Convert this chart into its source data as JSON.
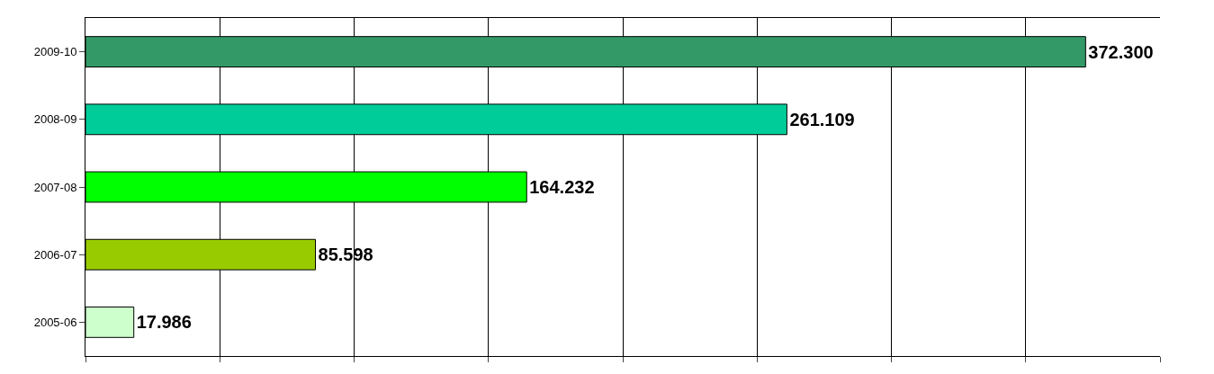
{
  "chart_data": {
    "type": "bar",
    "orientation": "horizontal",
    "categories": [
      "2009-10",
      "2008-09",
      "2007-08",
      "2006-07",
      "2005-06"
    ],
    "values": [
      372.3,
      261.109,
      164.232,
      85.598,
      17.986
    ],
    "value_labels": [
      "372.300",
      "261.109",
      "164.232",
      "85.598",
      "17.986"
    ],
    "colors": [
      "#339966",
      "#00cc99",
      "#00ff00",
      "#99cc00",
      "#ccffcc"
    ],
    "xlim": [
      0,
      400
    ],
    "xticks": [
      {
        "value": 0,
        "label": null
      },
      {
        "value": 50,
        "label": null
      },
      {
        "value": 100,
        "label": null
      },
      {
        "value": 150,
        "label": null
      },
      {
        "value": 200,
        "label": null
      },
      {
        "value": 250,
        "label": null
      },
      {
        "value": 300,
        "label": null
      },
      {
        "value": 350,
        "label": null
      },
      {
        "value": 400,
        "label": null
      }
    ],
    "tick_labels": "y",
    "grid": "x"
  }
}
